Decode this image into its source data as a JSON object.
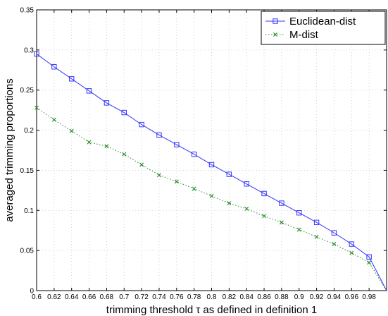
{
  "chart_data": {
    "type": "line",
    "xlabel": "trimming threshold τ as defined in definition 1",
    "ylabel": "averaged trimming proportions",
    "xlim": [
      0.6,
      1.0
    ],
    "ylim": [
      0,
      0.35
    ],
    "grid": true,
    "legend_position": "top-right",
    "x_ticks": [
      0.6,
      0.62,
      0.64,
      0.66,
      0.68,
      0.7,
      0.72,
      0.74,
      0.76,
      0.78,
      0.8,
      0.82,
      0.84,
      0.86,
      0.88,
      0.9,
      0.92,
      0.94,
      0.96,
      0.98
    ],
    "x_tick_labels": [
      "0.6",
      "0.62",
      "0.64",
      "0.66",
      "0.68",
      "0.7",
      "0.72",
      "0.74",
      "0.76",
      "0.78",
      "0.8",
      "0.82",
      "0.84",
      "0.86",
      "0.88",
      "0.9",
      "0.92",
      "0.94",
      "0.96",
      "0.98"
    ],
    "y_ticks": [
      0,
      0.05,
      0.1,
      0.15,
      0.2,
      0.25,
      0.3,
      0.35
    ],
    "y_tick_labels": [
      "0",
      "0.05",
      "0.1",
      "0.15",
      "0.2",
      "0.25",
      "0.3",
      "0.35"
    ],
    "x": [
      0.6,
      0.62,
      0.64,
      0.66,
      0.68,
      0.7,
      0.72,
      0.74,
      0.76,
      0.78,
      0.8,
      0.82,
      0.84,
      0.86,
      0.88,
      0.9,
      0.92,
      0.94,
      0.96,
      0.98,
      1.0
    ],
    "series": [
      {
        "name": "Euclidean-dist",
        "color": "#3333ff",
        "line_style": "solid",
        "marker": "square",
        "values": [
          0.295,
          0.279,
          0.264,
          0.249,
          0.234,
          0.222,
          0.207,
          0.194,
          0.182,
          0.17,
          0.157,
          0.145,
          0.133,
          0.121,
          0.109,
          0.097,
          0.085,
          0.072,
          0.058,
          0.042,
          0.0
        ]
      },
      {
        "name": "M-dist",
        "color": "#228b22",
        "line_style": "dotted",
        "marker": "x",
        "values": [
          0.228,
          0.213,
          0.199,
          0.185,
          0.18,
          0.17,
          0.157,
          0.144,
          0.136,
          0.127,
          0.118,
          0.109,
          0.102,
          0.093,
          0.085,
          0.076,
          0.067,
          0.058,
          0.047,
          0.035,
          0.0
        ]
      }
    ]
  }
}
